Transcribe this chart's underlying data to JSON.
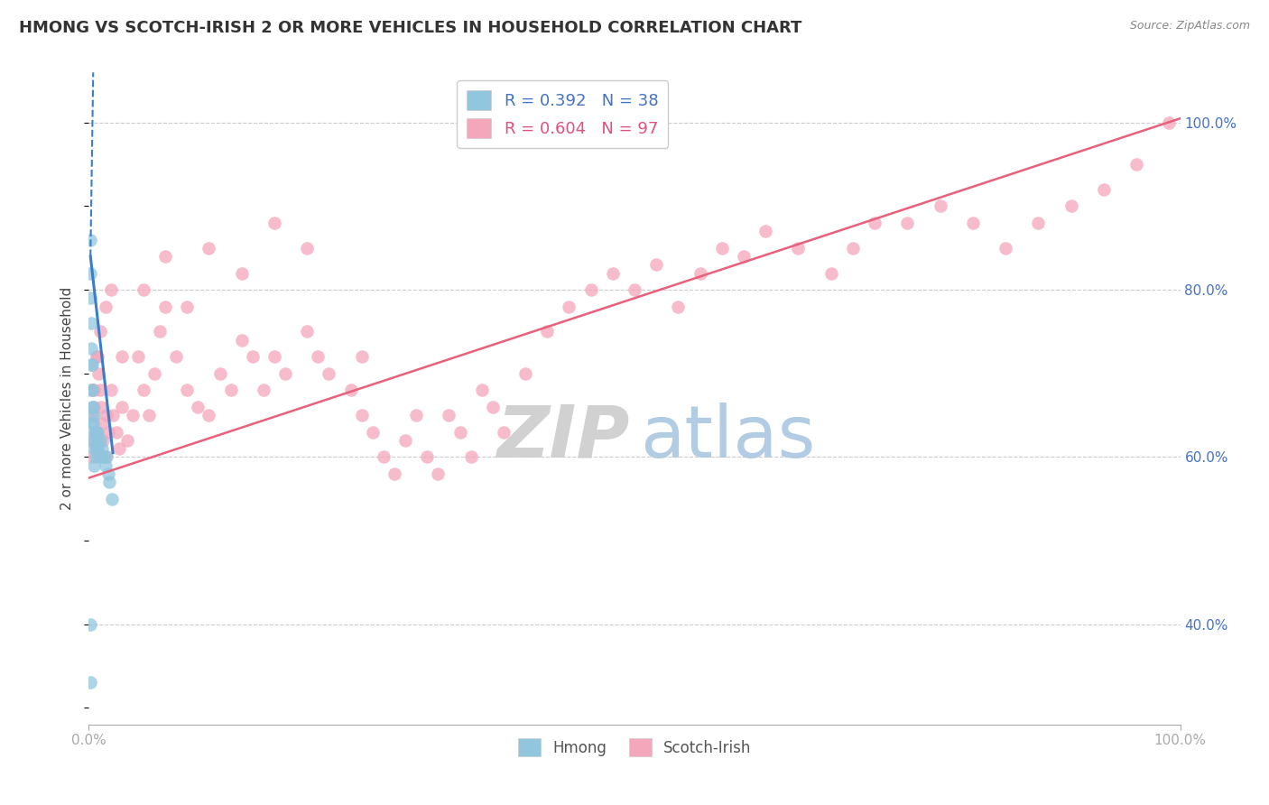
{
  "title": "HMONG VS SCOTCH-IRISH 2 OR MORE VEHICLES IN HOUSEHOLD CORRELATION CHART",
  "source": "Source: ZipAtlas.com",
  "ylabel": "2 or more Vehicles in Household",
  "xlim": [
    0.0,
    1.0
  ],
  "ylim": [
    0.28,
    1.06
  ],
  "y_ticks_right": [
    0.4,
    0.6,
    0.8,
    1.0
  ],
  "y_tick_labels_right": [
    "40.0%",
    "60.0%",
    "80.0%",
    "100.0%"
  ],
  "hmong_color": "#92c5de",
  "scotch_color": "#f4a6bb",
  "hmong_line_color": "#3a7dc9",
  "scotch_line_color": "#e8607a",
  "R_hmong": 0.392,
  "N_hmong": 38,
  "R_scotch": 0.604,
  "N_scotch": 97,
  "background_color": "#ffffff",
  "grid_color": "#cccccc",
  "title_fontsize": 13,
  "scotch_trend_x0": 0.0,
  "scotch_trend_y0": 0.575,
  "scotch_trend_x1": 1.0,
  "scotch_trend_y1": 1.005,
  "hmong_trend_solid_x0": 0.0015,
  "hmong_trend_solid_y0": 0.84,
  "hmong_trend_solid_x1": 0.022,
  "hmong_trend_solid_y1": 0.605,
  "hmong_trend_dash_x0": 0.0015,
  "hmong_trend_dash_y0": 0.84,
  "hmong_trend_dash_x1": 0.004,
  "hmong_trend_dash_y1": 1.06,
  "hmong_x": [
    0.001,
    0.001,
    0.001,
    0.002,
    0.002,
    0.002,
    0.002,
    0.003,
    0.003,
    0.003,
    0.003,
    0.004,
    0.004,
    0.004,
    0.005,
    0.005,
    0.005,
    0.005,
    0.006,
    0.006,
    0.006,
    0.007,
    0.007,
    0.008,
    0.008,
    0.009,
    0.009,
    0.01,
    0.011,
    0.012,
    0.013,
    0.015,
    0.016,
    0.018,
    0.019,
    0.021,
    0.001,
    0.001
  ],
  "hmong_y": [
    0.86,
    0.82,
    0.79,
    0.76,
    0.73,
    0.71,
    0.68,
    0.71,
    0.68,
    0.66,
    0.64,
    0.66,
    0.64,
    0.62,
    0.65,
    0.63,
    0.61,
    0.59,
    0.63,
    0.62,
    0.6,
    0.63,
    0.61,
    0.63,
    0.61,
    0.62,
    0.6,
    0.62,
    0.6,
    0.61,
    0.6,
    0.59,
    0.6,
    0.58,
    0.57,
    0.55,
    0.4,
    0.33
  ],
  "scotch_x": [
    0.002,
    0.003,
    0.004,
    0.005,
    0.006,
    0.007,
    0.008,
    0.009,
    0.01,
    0.011,
    0.012,
    0.013,
    0.015,
    0.016,
    0.018,
    0.02,
    0.022,
    0.025,
    0.028,
    0.03,
    0.035,
    0.04,
    0.045,
    0.05,
    0.055,
    0.06,
    0.065,
    0.07,
    0.08,
    0.09,
    0.1,
    0.11,
    0.12,
    0.13,
    0.14,
    0.15,
    0.16,
    0.17,
    0.18,
    0.2,
    0.21,
    0.22,
    0.24,
    0.25,
    0.26,
    0.27,
    0.28,
    0.29,
    0.3,
    0.31,
    0.32,
    0.33,
    0.34,
    0.35,
    0.36,
    0.37,
    0.38,
    0.4,
    0.42,
    0.44,
    0.46,
    0.48,
    0.5,
    0.52,
    0.54,
    0.56,
    0.58,
    0.6,
    0.62,
    0.65,
    0.68,
    0.7,
    0.72,
    0.75,
    0.78,
    0.81,
    0.84,
    0.87,
    0.9,
    0.93,
    0.96,
    0.99,
    0.003,
    0.005,
    0.007,
    0.01,
    0.015,
    0.02,
    0.03,
    0.05,
    0.07,
    0.09,
    0.11,
    0.14,
    0.17,
    0.2,
    0.25
  ],
  "scotch_y": [
    0.62,
    0.65,
    0.68,
    0.66,
    0.63,
    0.61,
    0.72,
    0.7,
    0.68,
    0.66,
    0.64,
    0.62,
    0.6,
    0.65,
    0.63,
    0.68,
    0.65,
    0.63,
    0.61,
    0.66,
    0.62,
    0.65,
    0.72,
    0.68,
    0.65,
    0.7,
    0.75,
    0.78,
    0.72,
    0.68,
    0.66,
    0.65,
    0.7,
    0.68,
    0.74,
    0.72,
    0.68,
    0.72,
    0.7,
    0.75,
    0.72,
    0.7,
    0.68,
    0.65,
    0.63,
    0.6,
    0.58,
    0.62,
    0.65,
    0.6,
    0.58,
    0.65,
    0.63,
    0.6,
    0.68,
    0.66,
    0.63,
    0.7,
    0.75,
    0.78,
    0.8,
    0.82,
    0.8,
    0.83,
    0.78,
    0.82,
    0.85,
    0.84,
    0.87,
    0.85,
    0.82,
    0.85,
    0.88,
    0.88,
    0.9,
    0.88,
    0.85,
    0.88,
    0.9,
    0.92,
    0.95,
    1.0,
    0.6,
    0.68,
    0.72,
    0.75,
    0.78,
    0.8,
    0.72,
    0.8,
    0.84,
    0.78,
    0.85,
    0.82,
    0.88,
    0.85,
    0.72
  ]
}
